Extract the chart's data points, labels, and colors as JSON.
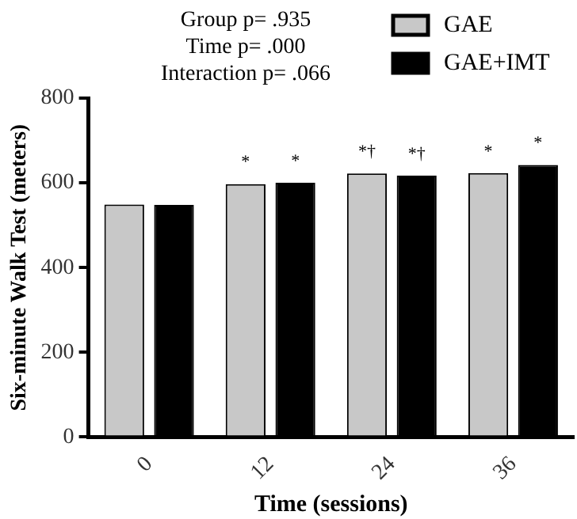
{
  "chart_data": {
    "type": "bar",
    "xlabel": "Time (sessions)",
    "ylabel": "Six-minute Walk Test (meters)",
    "categories": [
      "0",
      "12",
      "24",
      "36"
    ],
    "series": [
      {
        "name": "GAE",
        "color": "#c8c8c8",
        "values": [
          549,
          597,
          622,
          623
        ]
      },
      {
        "name": "GAE+IMT",
        "color": "#000000",
        "values": [
          548,
          600,
          617,
          642
        ]
      }
    ],
    "ylim": [
      0,
      800
    ],
    "yticks": [
      0,
      200,
      400,
      600,
      800
    ],
    "grid": false,
    "legend": "top right",
    "annotations": [
      "Group p= .935",
      "Time p= .000",
      "Interaction p= .066",
      {
        "text": "*",
        "x": "12",
        "y": 597
      },
      {
        "text": "*",
        "x": "12",
        "y": 600
      },
      {
        "text": "*†",
        "x": "24",
        "y": 622
      },
      {
        "text": "*†",
        "x": "24",
        "y": 617
      },
      {
        "text": "*",
        "x": "36",
        "y": 623
      },
      {
        "text": "*",
        "x": "36",
        "y": 642
      }
    ]
  }
}
